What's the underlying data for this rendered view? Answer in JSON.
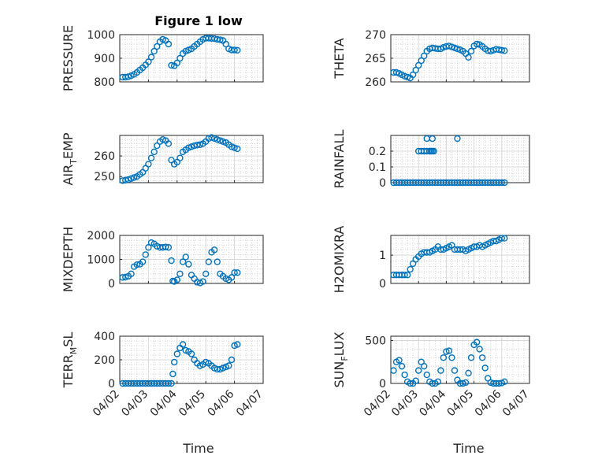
{
  "figure": {
    "title": "Figure 1 low",
    "xlabel": "Time",
    "marker_color": "#0072BD",
    "x_ticks": [
      "04/02",
      "04/03",
      "04/04",
      "04/05",
      "04/06",
      "04/07"
    ]
  },
  "chart_data": [
    {
      "type": "scatter",
      "ylabel": "PRESSURE",
      "ylim": [
        800,
        1000
      ],
      "yticks": [
        800,
        900,
        1000
      ],
      "xlim": [
        0,
        5
      ],
      "grid": true,
      "minor_grid": true,
      "series": [
        {
          "x": [
            0.1,
            0.2,
            0.3,
            0.4,
            0.5,
            0.6,
            0.7,
            0.8,
            0.9,
            1.0,
            1.1,
            1.2,
            1.3,
            1.4,
            1.5,
            1.6,
            1.7,
            1.8,
            1.9,
            2.0,
            2.1,
            2.2,
            2.3,
            2.4,
            2.5,
            2.6,
            2.7,
            2.8,
            2.9,
            3.0,
            3.1,
            3.2,
            3.3,
            3.4,
            3.5,
            3.6,
            3.7,
            3.8,
            3.9,
            4.0,
            4.1
          ],
          "y": [
            820,
            820,
            822,
            826,
            832,
            840,
            850,
            860,
            872,
            885,
            905,
            930,
            950,
            970,
            980,
            975,
            960,
            870,
            868,
            880,
            900,
            920,
            930,
            935,
            940,
            950,
            960,
            970,
            980,
            985,
            985,
            984,
            983,
            980,
            978,
            975,
            960,
            940,
            935,
            935,
            934
          ]
        }
      ]
    },
    {
      "type": "scatter",
      "ylabel": "THETA",
      "ylim": [
        260,
        270
      ],
      "yticks": [
        260,
        265,
        270
      ],
      "xlim": [
        0,
        5
      ],
      "grid": true,
      "minor_grid": true,
      "series": [
        {
          "x": [
            0.1,
            0.2,
            0.3,
            0.4,
            0.5,
            0.6,
            0.7,
            0.8,
            0.9,
            1.0,
            1.1,
            1.2,
            1.3,
            1.4,
            1.5,
            1.6,
            1.7,
            1.8,
            1.9,
            2.0,
            2.1,
            2.2,
            2.3,
            2.4,
            2.5,
            2.6,
            2.7,
            2.8,
            2.9,
            3.0,
            3.1,
            3.2,
            3.3,
            3.4,
            3.5,
            3.6,
            3.7,
            3.8,
            3.9,
            4.0,
            4.1
          ],
          "y": [
            262,
            262,
            261.8,
            261.5,
            261.2,
            261,
            260.8,
            261.5,
            262.5,
            263.5,
            264.5,
            265.5,
            266.5,
            267,
            267.2,
            267.1,
            267,
            267,
            267.3,
            267.5,
            267.6,
            267.4,
            267.2,
            267,
            266.8,
            266.5,
            266,
            265.2,
            266.5,
            267.6,
            268,
            267.9,
            267.5,
            267,
            266.6,
            266.5,
            266.7,
            266.9,
            266.8,
            266.7,
            266.6
          ]
        }
      ]
    },
    {
      "type": "scatter",
      "ylabel": "AIR_TEMP",
      "ylim": [
        247,
        270
      ],
      "yticks": [
        250,
        260
      ],
      "xlim": [
        0,
        5
      ],
      "grid": true,
      "minor_grid": true,
      "series": [
        {
          "x": [
            0.1,
            0.2,
            0.3,
            0.4,
            0.5,
            0.6,
            0.7,
            0.8,
            0.9,
            1.0,
            1.1,
            1.2,
            1.3,
            1.4,
            1.5,
            1.6,
            1.7,
            1.8,
            1.9,
            2.0,
            2.1,
            2.2,
            2.3,
            2.4,
            2.5,
            2.6,
            2.7,
            2.8,
            2.9,
            3.0,
            3.1,
            3.2,
            3.3,
            3.4,
            3.5,
            3.6,
            3.7,
            3.8,
            3.9,
            4.0,
            4.1
          ],
          "y": [
            248,
            248.2,
            248.5,
            249,
            249.5,
            250,
            251,
            252,
            254,
            256,
            259,
            262,
            265,
            267,
            268,
            267.5,
            266,
            258,
            256,
            257,
            259,
            262,
            263,
            264,
            264.5,
            265,
            265.3,
            265.5,
            266,
            267,
            268.5,
            269,
            268.5,
            268,
            267.5,
            267,
            266.5,
            265.5,
            264.5,
            264,
            263.5
          ]
        }
      ]
    },
    {
      "type": "scatter",
      "ylabel": "RAINFALL",
      "ylim": [
        0,
        0.3
      ],
      "yticks": [
        0,
        0.1,
        0.2
      ],
      "xlim": [
        0,
        5
      ],
      "grid": true,
      "minor_grid": true,
      "series": [
        {
          "x": [
            0.1,
            0.2,
            0.3,
            0.4,
            0.5,
            0.6,
            0.7,
            0.8,
            0.9,
            1.0,
            1.1,
            1.2,
            1.3,
            1.4,
            1.5,
            1.6,
            1.7,
            1.8,
            1.9,
            2.0,
            2.1,
            2.2,
            2.3,
            2.4,
            2.5,
            2.6,
            2.7,
            2.8,
            2.9,
            3.0,
            3.1,
            3.2,
            3.3,
            3.4,
            3.5,
            3.6,
            3.7,
            3.8,
            3.9,
            4.0,
            4.1,
            1.0,
            1.1,
            1.2,
            1.3,
            1.4,
            1.45,
            1.5,
            1.55,
            2.4,
            1.3,
            1.5
          ],
          "y": [
            0,
            0,
            0,
            0,
            0,
            0,
            0,
            0,
            0,
            0,
            0,
            0,
            0,
            0,
            0,
            0,
            0,
            0,
            0,
            0,
            0,
            0,
            0,
            0,
            0,
            0,
            0,
            0,
            0,
            0,
            0,
            0,
            0,
            0,
            0,
            0,
            0,
            0,
            0,
            0,
            0,
            0.2,
            0.2,
            0.2,
            0.2,
            0.2,
            0.2,
            0.2,
            0.2,
            0.28,
            0.28,
            0.28
          ]
        }
      ]
    },
    {
      "type": "scatter",
      "ylabel": "MIXDEPTH",
      "ylim": [
        0,
        2000
      ],
      "yticks": [
        0,
        1000,
        2000
      ],
      "xlim": [
        0,
        5
      ],
      "grid": true,
      "minor_grid": true,
      "series": [
        {
          "x": [
            0.1,
            0.2,
            0.3,
            0.4,
            0.5,
            0.6,
            0.7,
            0.8,
            0.9,
            1.0,
            1.1,
            1.2,
            1.3,
            1.4,
            1.5,
            1.6,
            1.7,
            1.8,
            1.85,
            1.9,
            2.0,
            2.1,
            2.2,
            2.3,
            2.4,
            2.5,
            2.6,
            2.7,
            2.8,
            2.9,
            3.0,
            3.1,
            3.2,
            3.3,
            3.4,
            3.5,
            3.6,
            3.7,
            3.8,
            3.9,
            4.0,
            4.1
          ],
          "y": [
            250,
            260,
            300,
            400,
            700,
            780,
            800,
            900,
            1200,
            1500,
            1700,
            1650,
            1550,
            1500,
            1500,
            1520,
            1500,
            950,
            100,
            80,
            150,
            400,
            900,
            1100,
            800,
            350,
            200,
            50,
            20,
            80,
            400,
            900,
            1300,
            1400,
            900,
            400,
            300,
            200,
            150,
            250,
            450,
            450
          ]
        }
      ]
    },
    {
      "type": "scatter",
      "ylabel": "H2OMIXRA",
      "ylim": [
        0,
        1.7
      ],
      "yticks": [
        0,
        1
      ],
      "xlim": [
        0,
        5
      ],
      "grid": true,
      "minor_grid": true,
      "series": [
        {
          "x": [
            0.1,
            0.2,
            0.3,
            0.4,
            0.5,
            0.6,
            0.7,
            0.8,
            0.9,
            1.0,
            1.1,
            1.2,
            1.3,
            1.4,
            1.5,
            1.6,
            1.7,
            1.8,
            1.9,
            2.0,
            2.1,
            2.2,
            2.3,
            2.4,
            2.5,
            2.6,
            2.7,
            2.8,
            2.9,
            3.0,
            3.1,
            3.2,
            3.3,
            3.4,
            3.5,
            3.6,
            3.7,
            3.8,
            3.9,
            4.0,
            4.1
          ],
          "y": [
            0.3,
            0.3,
            0.3,
            0.3,
            0.3,
            0.3,
            0.5,
            0.7,
            0.85,
            0.95,
            1.05,
            1.1,
            1.1,
            1.1,
            1.15,
            1.2,
            1.3,
            1.2,
            1.2,
            1.25,
            1.3,
            1.35,
            1.2,
            1.2,
            1.2,
            1.2,
            1.15,
            1.2,
            1.25,
            1.3,
            1.3,
            1.35,
            1.3,
            1.35,
            1.4,
            1.45,
            1.5,
            1.5,
            1.55,
            1.6,
            1.6
          ]
        }
      ]
    },
    {
      "type": "scatter",
      "ylabel": "TERR_MSL",
      "ylim": [
        0,
        400
      ],
      "yticks": [
        0,
        200,
        400
      ],
      "xlim": [
        0,
        5
      ],
      "grid": true,
      "minor_grid": true,
      "series": [
        {
          "x": [
            0.1,
            0.2,
            0.3,
            0.4,
            0.5,
            0.6,
            0.7,
            0.8,
            0.9,
            1.0,
            1.1,
            1.2,
            1.3,
            1.4,
            1.5,
            1.6,
            1.7,
            1.8,
            1.85,
            1.9,
            2.0,
            2.1,
            2.2,
            2.3,
            2.4,
            2.5,
            2.6,
            2.7,
            2.8,
            2.9,
            3.0,
            3.1,
            3.2,
            3.3,
            3.4,
            3.5,
            3.6,
            3.7,
            3.8,
            3.9,
            4.0,
            4.1
          ],
          "y": [
            0,
            0,
            0,
            0,
            0,
            0,
            0,
            0,
            0,
            0,
            0,
            0,
            0,
            0,
            0,
            0,
            0,
            0,
            80,
            180,
            250,
            300,
            330,
            280,
            270,
            250,
            200,
            170,
            150,
            160,
            180,
            170,
            150,
            130,
            120,
            120,
            130,
            140,
            150,
            200,
            320,
            330
          ]
        }
      ]
    },
    {
      "type": "scatter",
      "ylabel": "SUN_FLUX",
      "ylim": [
        0,
        550
      ],
      "yticks": [
        0,
        500
      ],
      "xlim": [
        0,
        5
      ],
      "grid": true,
      "minor_grid": true,
      "series": [
        {
          "x": [
            0.1,
            0.2,
            0.3,
            0.4,
            0.5,
            0.6,
            0.7,
            0.8,
            0.9,
            1.0,
            1.1,
            1.2,
            1.3,
            1.4,
            1.5,
            1.6,
            1.7,
            1.8,
            1.9,
            2.0,
            2.1,
            2.2,
            2.3,
            2.4,
            2.5,
            2.6,
            2.7,
            2.8,
            2.9,
            3.0,
            3.1,
            3.2,
            3.3,
            3.4,
            3.5,
            3.6,
            3.7,
            3.8,
            3.9,
            4.0,
            4.1
          ],
          "y": [
            150,
            250,
            270,
            200,
            100,
            20,
            0,
            0,
            30,
            150,
            250,
            200,
            100,
            20,
            0,
            0,
            20,
            150,
            300,
            370,
            380,
            300,
            150,
            40,
            0,
            0,
            10,
            120,
            300,
            450,
            480,
            400,
            300,
            180,
            60,
            10,
            0,
            0,
            0,
            5,
            20
          ]
        }
      ]
    }
  ]
}
